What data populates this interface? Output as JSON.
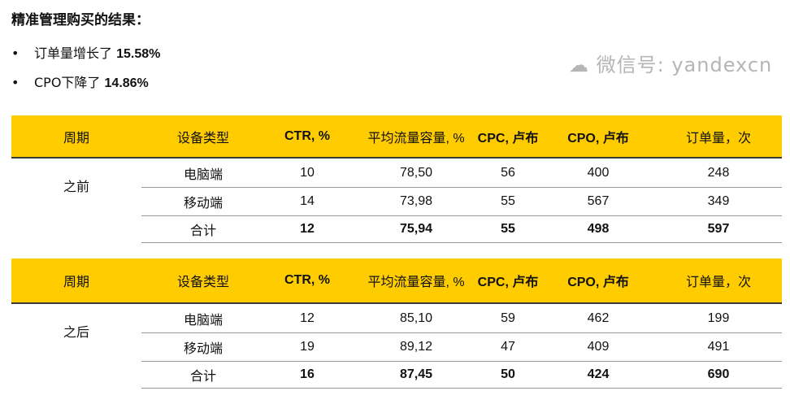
{
  "title": "精准管理购买的结果：",
  "bullets": [
    {
      "text": "订单量增长了 ",
      "value": "15.58%"
    },
    {
      "text": "CPO下降了 ",
      "value": "14.86%"
    }
  ],
  "columns": [
    "周期",
    "设备类型",
    "CTR, %",
    "平均流量容量, %",
    "CPC, 卢布",
    "CPO, 卢布",
    "订单量，次"
  ],
  "tables": [
    {
      "period": "之前",
      "rows": [
        [
          "电脑端",
          "10",
          "78,50",
          "56",
          "400",
          "248"
        ],
        [
          "移动端",
          "14",
          "73,98",
          "55",
          "567",
          "349"
        ],
        [
          "合计",
          "12",
          "75,94",
          "55",
          "498",
          "597"
        ]
      ]
    },
    {
      "period": "之后",
      "rows": [
        [
          "电脑端",
          "12",
          "85,10",
          "59",
          "462",
          "199"
        ],
        [
          "移动端",
          "19",
          "89,12",
          "47",
          "409",
          "491"
        ],
        [
          "合计",
          "16",
          "87,45",
          "50",
          "424",
          "690"
        ]
      ]
    }
  ],
  "watermark": "微信号: yandexcn",
  "colors": {
    "header": "#FFCC00"
  }
}
